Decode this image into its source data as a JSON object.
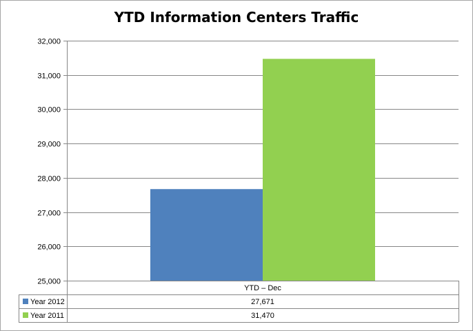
{
  "chart_data": {
    "type": "bar",
    "title": "YTD Information Centers Traffic",
    "categories": [
      "YTD – Dec"
    ],
    "series": [
      {
        "name": "Year 2012",
        "values": [
          27671
        ],
        "value_label": "27,671",
        "color": "#4f81bd"
      },
      {
        "name": "Year 2011",
        "values": [
          31470
        ],
        "value_label": "31,470",
        "color": "#92d050"
      }
    ],
    "ylim": [
      25000,
      32000
    ],
    "yticks": [
      "25,000",
      "26,000",
      "27,000",
      "28,000",
      "29,000",
      "30,000",
      "31,000",
      "32,000"
    ],
    "xlabel": "",
    "ylabel": "",
    "grid": true,
    "legend": "data-table"
  }
}
